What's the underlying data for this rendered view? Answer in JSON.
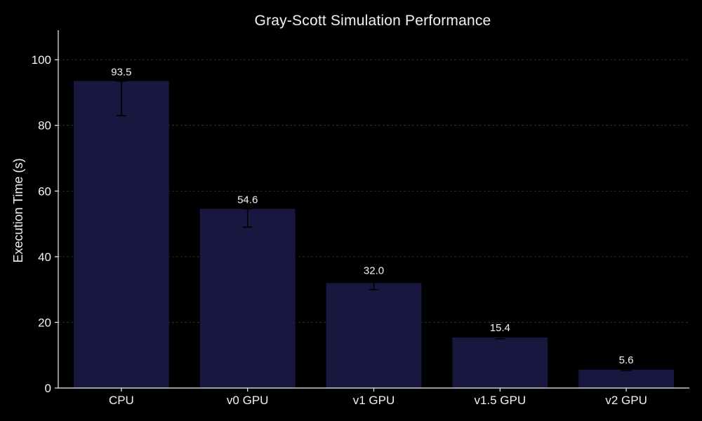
{
  "chart_data": {
    "type": "bar",
    "title": "Gray-Scott Simulation Performance",
    "xlabel": "",
    "ylabel": "Execution Time (s)",
    "categories": [
      "CPU",
      "v0 GPU",
      "v1 GPU",
      "v1.5 GPU",
      "v2 GPU"
    ],
    "values": [
      93.5,
      54.6,
      32.0,
      15.4,
      5.6
    ],
    "value_labels": [
      "93.5",
      "54.6",
      "32.0",
      "15.4",
      "5.6"
    ],
    "error_low": [
      83.0,
      49.0,
      30.0,
      15.0,
      5.3
    ],
    "error_high": [
      93.5,
      54.6,
      33.0,
      15.6,
      5.8
    ],
    "ylim": [
      0,
      109
    ],
    "yticks": [
      0,
      20,
      40,
      60,
      80,
      100
    ],
    "grid": true,
    "colors": {
      "background": "#000000",
      "bar": "#171740",
      "error_bar": "#000000",
      "text": "#f2f2f2",
      "grid": "#3a3a3a"
    }
  }
}
